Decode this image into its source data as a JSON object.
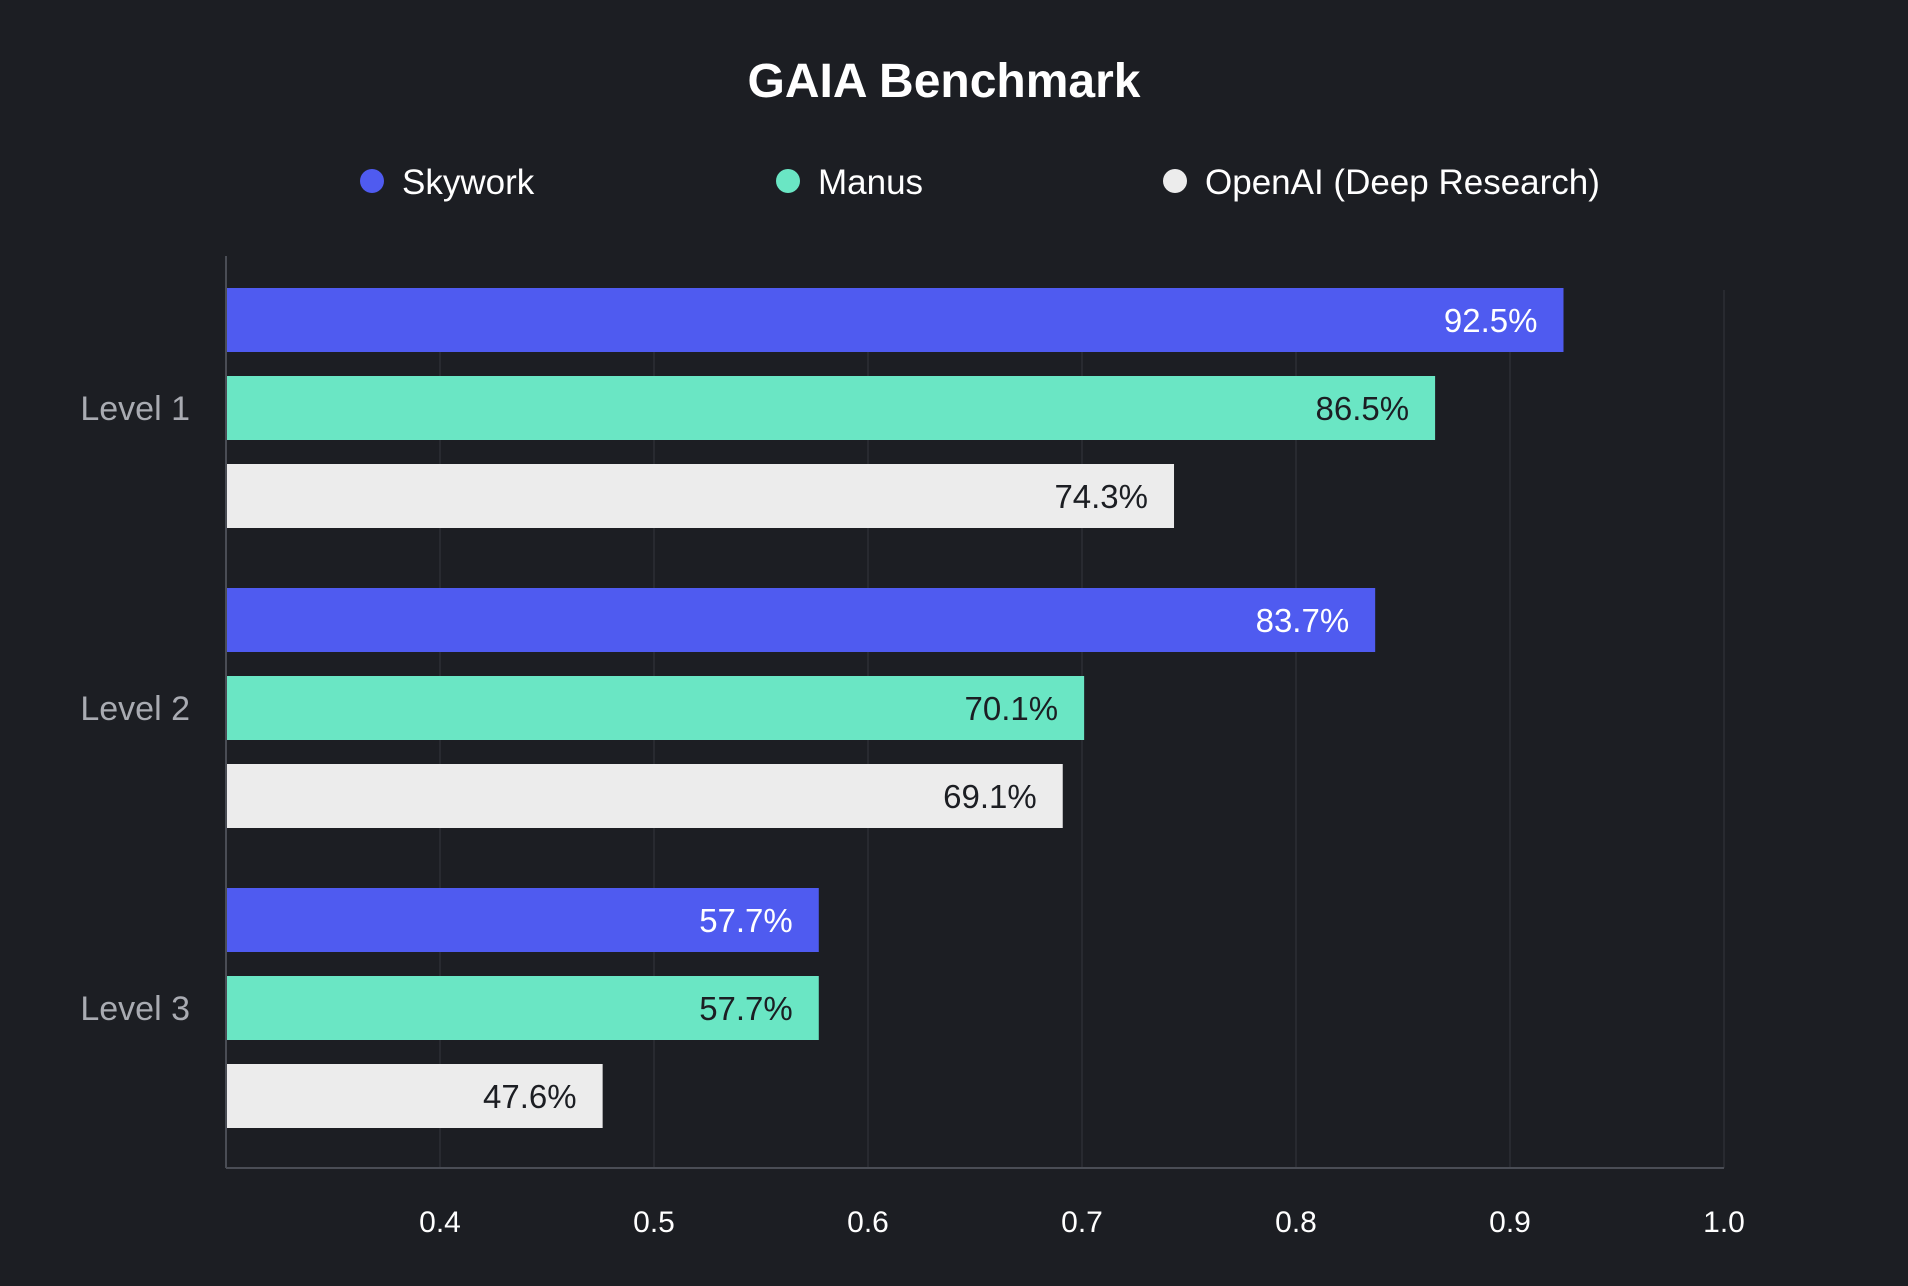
{
  "chart_data": {
    "type": "bar",
    "orientation": "horizontal",
    "title": "GAIA Benchmark",
    "categories": [
      "Level 1",
      "Level 2",
      "Level 3"
    ],
    "series": [
      {
        "name": "Skywork",
        "color": "#4f5bf0",
        "label_color": "#ffffff",
        "values": [
          0.925,
          0.837,
          0.577
        ],
        "labels": [
          "92.5%",
          "83.7%",
          "57.7%"
        ]
      },
      {
        "name": "Manus",
        "color": "#6ae6c4",
        "label_color": "#1c1e23",
        "values": [
          0.865,
          0.701,
          0.577
        ],
        "labels": [
          "86.5%",
          "70.1%",
          "57.7%"
        ]
      },
      {
        "name": "OpenAI (Deep Research)",
        "color": "#ececec",
        "label_color": "#1c1e23",
        "values": [
          0.743,
          0.691,
          0.476
        ],
        "labels": [
          "74.3%",
          "69.1%",
          "47.6%"
        ]
      }
    ],
    "xlim": [
      0.3,
      1.0
    ],
    "xticks": [
      0.4,
      0.5,
      0.6,
      0.7,
      0.8,
      0.9,
      1.0
    ],
    "xtick_labels": [
      "0.4",
      "0.5",
      "0.6",
      "0.7",
      "0.8",
      "0.9",
      "1.0"
    ],
    "xlabel": "",
    "ylabel": "",
    "grid": true,
    "legend": "top-center"
  },
  "colors": {
    "background": "#1c1e23",
    "grid": "#2c2e35",
    "axis": "#4a4d55",
    "category_text": "#a9abb2"
  }
}
